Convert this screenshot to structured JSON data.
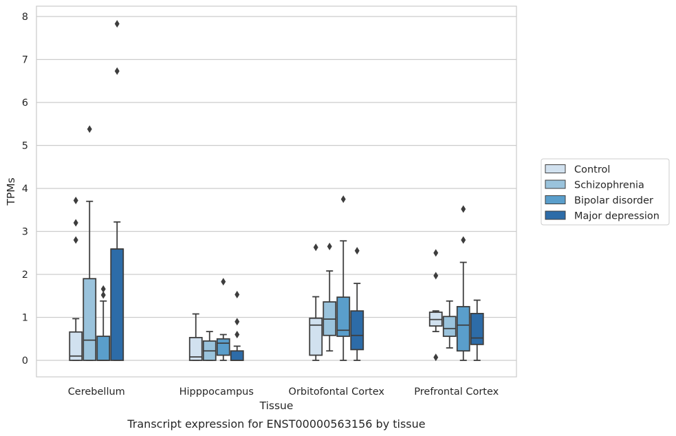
{
  "chart_data": {
    "type": "box",
    "xlabel": "Tissue",
    "ylabel": "TPMs",
    "caption": "Transcript expression for ENST00000563156 by tissue",
    "ylim": [
      -0.38,
      8.22
    ],
    "yticks": [
      "0",
      "1",
      "2",
      "3",
      "4",
      "5",
      "6",
      "7",
      "8"
    ],
    "grid": "horizontal",
    "legend_position": "right",
    "categories": [
      "Cerebellum",
      "Hipppocampus",
      "Orbitofontal Cortex",
      "Prefrontal Cortex"
    ],
    "series": [
      {
        "name": "Control",
        "color": "#d1e1ef",
        "boxes": [
          {
            "q1": 0.0,
            "median": 0.1,
            "q3": 0.66,
            "whisker_low": 0.0,
            "whisker_high": 0.97,
            "outliers": [
              2.8,
              3.2,
              3.72
            ]
          },
          {
            "q1": 0.0,
            "median": 0.08,
            "q3": 0.53,
            "whisker_low": 0.0,
            "whisker_high": 1.08,
            "outliers": []
          },
          {
            "q1": 0.12,
            "median": 0.82,
            "q3": 0.98,
            "whisker_low": 0.0,
            "whisker_high": 1.48,
            "outliers": [
              2.63
            ]
          },
          {
            "q1": 0.8,
            "median": 0.95,
            "q3": 1.12,
            "whisker_low": 0.67,
            "whisker_high": 1.15,
            "outliers": [
              0.07,
              1.97,
              2.5
            ]
          }
        ]
      },
      {
        "name": "Schizophrenia",
        "color": "#9ac3dc",
        "boxes": [
          {
            "q1": 0.0,
            "median": 0.47,
            "q3": 1.9,
            "whisker_low": 0.0,
            "whisker_high": 3.7,
            "outliers": [
              5.38
            ]
          },
          {
            "q1": 0.0,
            "median": 0.22,
            "q3": 0.45,
            "whisker_low": 0.0,
            "whisker_high": 0.67,
            "outliers": []
          },
          {
            "q1": 0.58,
            "median": 0.96,
            "q3": 1.36,
            "whisker_low": 0.22,
            "whisker_high": 2.08,
            "outliers": [
              2.65
            ]
          },
          {
            "q1": 0.56,
            "median": 0.74,
            "q3": 1.02,
            "whisker_low": 0.29,
            "whisker_high": 1.38,
            "outliers": []
          }
        ]
      },
      {
        "name": "Bipolar disorder",
        "color": "#5a9ecb",
        "boxes": [
          {
            "q1": 0.0,
            "median": 0.0,
            "q3": 0.56,
            "whisker_low": 0.0,
            "whisker_high": 1.38,
            "outliers": [
              1.52,
              1.66
            ]
          },
          {
            "q1": 0.12,
            "median": 0.4,
            "q3": 0.5,
            "whisker_low": 0.0,
            "whisker_high": 0.6,
            "outliers": [
              1.83
            ]
          },
          {
            "q1": 0.56,
            "median": 0.7,
            "q3": 1.47,
            "whisker_low": 0.0,
            "whisker_high": 2.78,
            "outliers": [
              3.75
            ]
          },
          {
            "q1": 0.22,
            "median": 0.82,
            "q3": 1.25,
            "whisker_low": 0.0,
            "whisker_high": 2.28,
            "outliers": [
              2.8,
              3.52
            ]
          }
        ]
      },
      {
        "name": "Major depression",
        "color": "#2d6ca8",
        "boxes": [
          {
            "q1": 0.0,
            "median": 2.59,
            "q3": 2.59,
            "whisker_low": 0.0,
            "whisker_high": 3.22,
            "outliers": [
              6.73,
              7.83
            ]
          },
          {
            "q1": 0.0,
            "median": 0.0,
            "q3": 0.22,
            "whisker_low": 0.0,
            "whisker_high": 0.33,
            "outliers": [
              0.6,
              0.9,
              1.53
            ]
          },
          {
            "q1": 0.25,
            "median": 0.58,
            "q3": 1.15,
            "whisker_low": 0.0,
            "whisker_high": 1.79,
            "outliers": [
              2.55
            ]
          },
          {
            "q1": 0.37,
            "median": 0.52,
            "q3": 1.09,
            "whisker_low": 0.0,
            "whisker_high": 1.4,
            "outliers": []
          }
        ]
      }
    ]
  },
  "colors": {
    "grid": "#cccccc",
    "frame": "#cccccc",
    "box_edge": "#3d3d3d",
    "text": "#262626"
  }
}
